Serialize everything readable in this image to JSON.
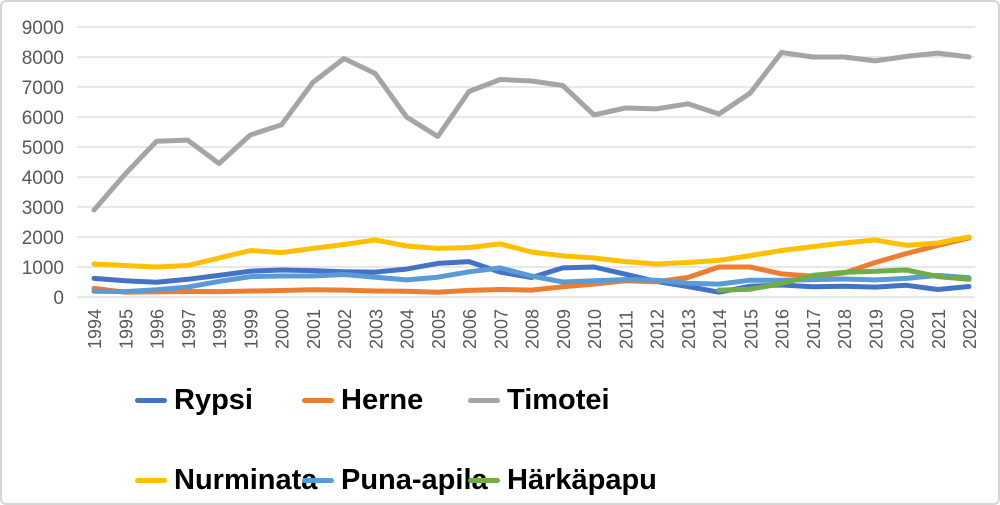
{
  "chart_data": {
    "type": "line",
    "title": "",
    "xlabel": "",
    "ylabel": "",
    "ylim": [
      0,
      9000
    ],
    "ytick_step": 1000,
    "yticks": [
      0,
      1000,
      2000,
      3000,
      4000,
      5000,
      6000,
      7000,
      8000,
      9000
    ],
    "grid": true,
    "grid_color": "#D9D9D9",
    "axis_label_color": "#595959",
    "legend_position": "bottom",
    "x": [
      "1994",
      "1995",
      "1996",
      "1997",
      "1998",
      "1999",
      "2000",
      "2001",
      "2002",
      "2003",
      "2004",
      "2005",
      "2006",
      "2007",
      "2008",
      "2009",
      "2010",
      "2011",
      "2012",
      "2013",
      "2014",
      "2015",
      "2016",
      "2017",
      "2018",
      "2019",
      "2020",
      "2021",
      "2022"
    ],
    "series": [
      {
        "name": "Rypsi",
        "color": "#4472C4",
        "values": [
          620,
          540,
          490,
          590,
          720,
          860,
          900,
          880,
          840,
          830,
          930,
          1120,
          1180,
          830,
          650,
          970,
          1000,
          760,
          520,
          350,
          160,
          360,
          400,
          340,
          360,
          330,
          390,
          250,
          350
        ]
      },
      {
        "name": "Herne",
        "color": "#ED7D31",
        "values": [
          290,
          160,
          170,
          185,
          180,
          200,
          215,
          240,
          230,
          200,
          190,
          160,
          220,
          250,
          230,
          340,
          430,
          540,
          510,
          650,
          1000,
          1000,
          770,
          690,
          800,
          1150,
          1450,
          1720,
          1970
        ]
      },
      {
        "name": "Timotei",
        "color": "#A5A5A5",
        "values": [
          2900,
          4100,
          5190,
          5230,
          4450,
          5400,
          5740,
          7150,
          7950,
          7450,
          6000,
          5350,
          6850,
          7250,
          7200,
          7050,
          6070,
          6300,
          6270,
          6440,
          6100,
          6800,
          8150,
          8000,
          8000,
          7870,
          8020,
          8130,
          8000
        ]
      },
      {
        "name": "Nurminata",
        "color": "#FFC000",
        "values": [
          1100,
          1050,
          1000,
          1050,
          1300,
          1550,
          1480,
          1620,
          1750,
          1900,
          1700,
          1620,
          1650,
          1770,
          1500,
          1370,
          1300,
          1180,
          1100,
          1150,
          1220,
          1380,
          1550,
          1680,
          1800,
          1900,
          1720,
          1800,
          2000
        ]
      },
      {
        "name": "Puna-apila",
        "color": "#5B9BD5",
        "values": [
          190,
          180,
          240,
          330,
          520,
          680,
          700,
          700,
          750,
          660,
          570,
          660,
          840,
          970,
          700,
          500,
          540,
          580,
          560,
          460,
          430,
          560,
          560,
          580,
          600,
          570,
          620,
          720,
          640
        ]
      },
      {
        "name": "Härkäpapu",
        "color": "#70AD47",
        "values": [
          null,
          null,
          null,
          null,
          null,
          null,
          null,
          null,
          null,
          null,
          null,
          null,
          null,
          null,
          null,
          null,
          null,
          null,
          null,
          null,
          230,
          260,
          450,
          720,
          820,
          860,
          900,
          680,
          590
        ]
      }
    ]
  }
}
